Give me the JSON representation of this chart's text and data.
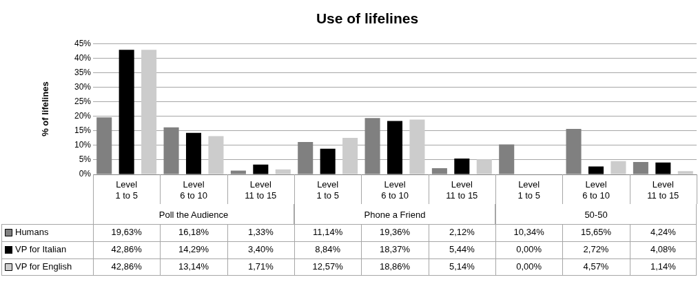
{
  "chart_data": {
    "type": "bar",
    "title": "Use of lifelines",
    "ylabel": "% of lifelines",
    "categories": [
      "Level 1 to 5",
      "Level 6 to 10",
      "Level 11 to 15",
      "Level 1 to 5",
      "Level 6 to 10",
      "Level 11 to 15",
      "Level 1 to 5",
      "Level 6 to 10",
      "Level 11 to 15"
    ],
    "annotations": [
      "Poll the Audience",
      "Phone a Friend",
      "50-50"
    ],
    "series": [
      {
        "name": "Humans",
        "color": "#808080",
        "values": [
          19.63,
          16.18,
          1.33,
          11.14,
          19.36,
          2.12,
          10.34,
          15.65,
          4.24
        ],
        "value_labels": [
          "19,63%",
          "16,18%",
          "1,33%",
          "11,14%",
          "19,36%",
          "2,12%",
          "10,34%",
          "15,65%",
          "4,24%"
        ]
      },
      {
        "name": "VP for Italian",
        "color": "#000000",
        "values": [
          42.86,
          14.29,
          3.4,
          8.84,
          18.37,
          5.44,
          0,
          2.72,
          4.08
        ],
        "value_labels": [
          "42,86%",
          "14,29%",
          "3,40%",
          "8,84%",
          "18,37%",
          "5,44%",
          "0,00%",
          "2,72%",
          "4,08%"
        ]
      },
      {
        "name": "VP for English",
        "color": "#cccccc",
        "values": [
          42.86,
          13.14,
          1.71,
          12.57,
          18.86,
          5.14,
          0,
          4.57,
          1.14
        ],
        "value_labels": [
          "42,86%",
          "13,14%",
          "1,71%",
          "12,57%",
          "18,86%",
          "5,14%",
          "0,00%",
          "4,57%",
          "1,14%"
        ]
      }
    ],
    "ylim": [
      0,
      45
    ],
    "yticks": [
      {
        "value": 0,
        "label": "0%"
      },
      {
        "value": 5,
        "label": "5%"
      },
      {
        "value": 10,
        "label": "10%"
      },
      {
        "value": 15,
        "label": "15%"
      },
      {
        "value": 20,
        "label": "20%"
      },
      {
        "value": 25,
        "label": "25%"
      },
      {
        "value": 30,
        "label": "30%"
      },
      {
        "value": 35,
        "label": "35%"
      },
      {
        "value": 40,
        "label": "40%"
      },
      {
        "value": 45,
        "label": "45%"
      }
    ],
    "grid": "y",
    "legend": "bottom left"
  }
}
